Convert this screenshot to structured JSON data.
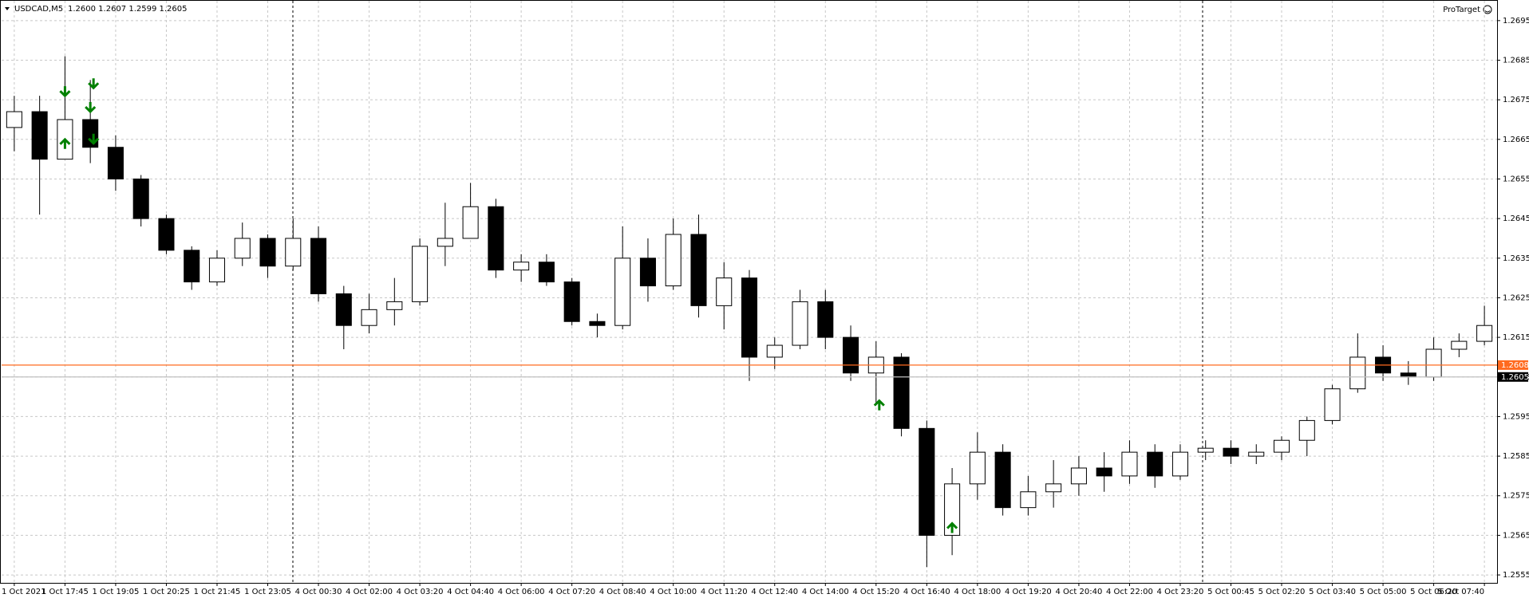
{
  "chart_data": {
    "type": "candlestick",
    "title": "USDCAD,M5",
    "subtitle": "1.2600 1.2607 1.2599 1.2605",
    "watermark": "ProTarget",
    "categories": [
      "1 Oct 2021",
      null,
      "1 Oct 17:45",
      null,
      "1 Oct 19:05",
      null,
      "1 Oct 20:25",
      null,
      "1 Oct 21:45",
      null,
      "1 Oct 23:05",
      null,
      "4 Oct 00:30",
      null,
      "4 Oct 02:00",
      null,
      "4 Oct 03:20",
      null,
      "4 Oct 04:40",
      null,
      "4 Oct 06:00",
      null,
      "4 Oct 07:20",
      null,
      "4 Oct 08:40",
      null,
      "4 Oct 10:00",
      null,
      "4 Oct 11:20",
      null,
      "4 Oct 12:40",
      null,
      "4 Oct 14:00",
      null,
      "4 Oct 15:20",
      null,
      "4 Oct 16:40",
      null,
      "4 Oct 18:00",
      null,
      "4 Oct 19:20",
      null,
      "4 Oct 20:40",
      null,
      "4 Oct 22:00",
      null,
      "4 Oct 23:20",
      null,
      "5 Oct 00:45",
      null,
      "5 Oct 02:20",
      null,
      "5 Oct 03:40",
      null,
      "5 Oct 05:00",
      null,
      "5 Oct 06:20",
      null,
      "5 Oct 07:40"
    ],
    "open": [
      1.2668,
      1.2672,
      1.266,
      1.267,
      1.2663,
      1.2655,
      1.2645,
      1.2637,
      1.2629,
      1.2635,
      1.264,
      1.2633,
      1.264,
      1.2626,
      1.2618,
      1.2622,
      1.2624,
      1.2638,
      1.264,
      1.2648,
      1.2632,
      1.2634,
      1.2629,
      1.2619,
      1.2618,
      1.2635,
      1.2628,
      1.2641,
      1.2623,
      1.263,
      1.261,
      1.2613,
      1.2624,
      1.2615,
      1.2606,
      1.261,
      1.2592,
      1.2565,
      1.2578,
      1.2586,
      1.2572,
      1.2576,
      1.2578,
      1.2582,
      1.258,
      1.2586,
      1.258,
      1.2586,
      1.2587,
      1.2585,
      1.2586,
      1.2589,
      1.2594,
      1.2602,
      1.261,
      1.2606,
      1.2605,
      1.2612,
      1.2614
    ],
    "high": [
      1.2676,
      1.2676,
      1.2686,
      1.268,
      1.2666,
      1.2656,
      1.2646,
      1.2638,
      1.2637,
      1.2644,
      1.2641,
      1.2645,
      1.2643,
      1.2628,
      1.2626,
      1.263,
      1.264,
      1.2649,
      1.2654,
      1.265,
      1.2636,
      1.2636,
      1.263,
      1.2621,
      1.2643,
      1.264,
      1.2645,
      1.2646,
      1.2634,
      1.2632,
      1.2615,
      1.2627,
      1.2627,
      1.2618,
      1.2614,
      1.2611,
      1.2594,
      1.2582,
      1.2591,
      1.2588,
      1.258,
      1.2584,
      1.2585,
      1.2586,
      1.2589,
      1.2588,
      1.2588,
      1.2589,
      1.2589,
      1.2588,
      1.259,
      1.2595,
      1.2603,
      1.2616,
      1.2613,
      1.2609,
      1.2615,
      1.2616,
      1.2623
    ],
    "low": [
      1.2662,
      1.2646,
      1.266,
      1.2659,
      1.2652,
      1.2643,
      1.2636,
      1.2627,
      1.2628,
      1.2633,
      1.263,
      1.2632,
      1.2624,
      1.2612,
      1.2616,
      1.2618,
      1.2623,
      1.2633,
      1.264,
      1.263,
      1.2629,
      1.2628,
      1.2618,
      1.2615,
      1.2617,
      1.2624,
      1.2627,
      1.262,
      1.2617,
      1.2604,
      1.2607,
      1.2612,
      1.2612,
      1.2604,
      1.2598,
      1.259,
      1.2557,
      1.256,
      1.2574,
      1.257,
      1.257,
      1.2572,
      1.2575,
      1.2576,
      1.2578,
      1.2577,
      1.2579,
      1.2584,
      1.2583,
      1.2583,
      1.2584,
      1.2585,
      1.2593,
      1.2601,
      1.2604,
      1.2603,
      1.2604,
      1.261,
      1.2613
    ],
    "close": [
      1.2672,
      1.266,
      1.267,
      1.2663,
      1.2655,
      1.2645,
      1.2637,
      1.2629,
      1.2635,
      1.264,
      1.2633,
      1.264,
      1.2626,
      1.2618,
      1.2622,
      1.2624,
      1.2638,
      1.264,
      1.2648,
      1.2632,
      1.2634,
      1.2629,
      1.2619,
      1.2618,
      1.2635,
      1.2628,
      1.2641,
      1.2623,
      1.263,
      1.261,
      1.2613,
      1.2624,
      1.2615,
      1.2606,
      1.261,
      1.2592,
      1.2565,
      1.2578,
      1.2586,
      1.2572,
      1.2576,
      1.2578,
      1.2582,
      1.258,
      1.2586,
      1.258,
      1.2586,
      1.2587,
      1.2585,
      1.2586,
      1.2589,
      1.2594,
      1.2602,
      1.261,
      1.2606,
      1.2605,
      1.2612,
      1.2614,
      1.2618
    ],
    "color": "#000000",
    "signals": [
      {
        "x": 2,
        "y": 1.2676,
        "direction": "down"
      },
      {
        "x": 3,
        "y": 1.2678,
        "direction": "down"
      },
      {
        "x": 3,
        "y": 1.2672,
        "direction": "down"
      },
      {
        "x": 3,
        "y": 1.2664,
        "direction": "down"
      },
      {
        "x": 2,
        "y": 1.2665,
        "direction": "up"
      },
      {
        "x": 34,
        "y": 1.2599,
        "direction": "up"
      },
      {
        "x": 37,
        "y": 1.2568,
        "direction": "up"
      }
    ],
    "signal_color": "#008000",
    "price_lines": [
      {
        "value": 1.2608,
        "color": "#ff6a1f"
      },
      {
        "value": 1.2605,
        "color": "#000000"
      }
    ],
    "ylim": [
      1.2553,
      1.27
    ],
    "yticks": [
      1.2555,
      1.2565,
      1.2575,
      1.2585,
      1.2595,
      1.2605,
      1.2615,
      1.2625,
      1.2635,
      1.2645,
      1.2655,
      1.2665,
      1.2675,
      1.2685,
      1.2695
    ],
    "grid": true
  }
}
